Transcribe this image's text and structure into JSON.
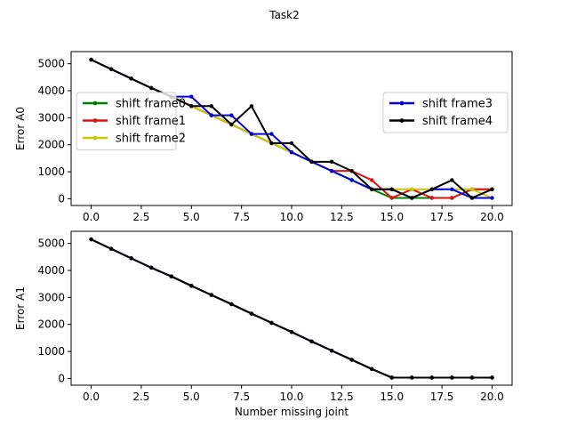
{
  "figure": {
    "suptitle": "Task2"
  },
  "chart_data": [
    {
      "type": "line",
      "title": "",
      "xlabel": "",
      "ylabel": "Error A0",
      "xlim": [
        -1,
        21
      ],
      "ylim": [
        -250,
        5450
      ],
      "xticks": [
        0,
        2.5,
        5,
        7.5,
        10,
        12.5,
        15,
        17.5,
        20
      ],
      "xtick_labels": [
        "0.0",
        "2.5",
        "5.0",
        "7.5",
        "10.0",
        "12.5",
        "15.0",
        "17.5",
        "20.0"
      ],
      "yticks": [
        0,
        1000,
        2000,
        3000,
        4000,
        5000
      ],
      "ytick_labels": [
        "0",
        "1000",
        "2000",
        "3000",
        "4000",
        "5000"
      ],
      "x": [
        0,
        1,
        2,
        3,
        4,
        5,
        6,
        7,
        8,
        9,
        10,
        11,
        12,
        13,
        14,
        15,
        16,
        17,
        18,
        19,
        20
      ],
      "series": [
        {
          "name": "shift frame0",
          "color": "#008000",
          "values": [
            5150,
            4800,
            4450,
            4100,
            3780,
            3430,
            3090,
            2750,
            2400,
            2060,
            1720,
            1370,
            1030,
            690,
            350,
            30,
            30,
            30,
            30,
            350,
            350
          ]
        },
        {
          "name": "shift frame1",
          "color": "#e01010",
          "values": [
            5150,
            4800,
            4450,
            4100,
            3780,
            3430,
            3090,
            2750,
            2400,
            2060,
            1720,
            1370,
            1030,
            1030,
            690,
            30,
            350,
            30,
            30,
            350,
            350
          ]
        },
        {
          "name": "shift frame2",
          "color": "#c8c800",
          "values": [
            5150,
            4800,
            4450,
            4100,
            3780,
            3430,
            3090,
            2750,
            2400,
            2060,
            1720,
            1370,
            1030,
            690,
            350,
            350,
            350,
            350,
            350,
            350,
            30
          ]
        },
        {
          "name": "shift frame3",
          "color": "#0000e0",
          "values": [
            5150,
            4800,
            4450,
            4100,
            3780,
            3780,
            3090,
            3090,
            2400,
            2400,
            1720,
            1370,
            1030,
            690,
            350,
            350,
            30,
            350,
            350,
            30,
            30
          ]
        },
        {
          "name": "shift frame4",
          "color": "#000000",
          "values": [
            5150,
            4800,
            4450,
            4100,
            3780,
            3430,
            3430,
            2750,
            3430,
            2060,
            2060,
            1370,
            1370,
            1030,
            350,
            350,
            30,
            350,
            690,
            30,
            350
          ]
        }
      ],
      "legend": {
        "left_column": [
          "shift frame0",
          "shift frame1",
          "shift frame2"
        ],
        "right_column": [
          "shift frame3",
          "shift frame4"
        ],
        "placement": "upper band, two columns"
      }
    },
    {
      "type": "line",
      "title": "",
      "xlabel": "Number missing joint",
      "ylabel": "Error A1",
      "xlim": [
        -1,
        21
      ],
      "ylim": [
        -250,
        5450
      ],
      "xticks": [
        0,
        2.5,
        5,
        7.5,
        10,
        12.5,
        15,
        17.5,
        20
      ],
      "xtick_labels": [
        "0.0",
        "2.5",
        "5.0",
        "7.5",
        "10.0",
        "12.5",
        "15.0",
        "17.5",
        "20.0"
      ],
      "yticks": [
        0,
        1000,
        2000,
        3000,
        4000,
        5000
      ],
      "ytick_labels": [
        "0",
        "1000",
        "2000",
        "3000",
        "4000",
        "5000"
      ],
      "x": [
        0,
        1,
        2,
        3,
        4,
        5,
        6,
        7,
        8,
        9,
        10,
        11,
        12,
        13,
        14,
        15,
        16,
        17,
        18,
        19,
        20
      ],
      "series": [
        {
          "name": "shift frame0",
          "color": "#008000",
          "values": [
            5150,
            4800,
            4450,
            4100,
            3780,
            3430,
            3090,
            2750,
            2400,
            2060,
            1720,
            1370,
            1030,
            690,
            350,
            30,
            30,
            30,
            30,
            30,
            30
          ]
        },
        {
          "name": "shift frame1",
          "color": "#e01010",
          "values": [
            5150,
            4800,
            4450,
            4100,
            3780,
            3430,
            3090,
            2750,
            2400,
            2060,
            1720,
            1370,
            1030,
            690,
            350,
            30,
            30,
            30,
            30,
            30,
            30
          ]
        },
        {
          "name": "shift frame2",
          "color": "#c8c800",
          "values": [
            5150,
            4800,
            4450,
            4100,
            3780,
            3430,
            3090,
            2750,
            2400,
            2060,
            1720,
            1370,
            1030,
            690,
            350,
            30,
            30,
            30,
            30,
            30,
            30
          ]
        },
        {
          "name": "shift frame3",
          "color": "#0000e0",
          "values": [
            5150,
            4800,
            4450,
            4100,
            3780,
            3430,
            3090,
            2750,
            2400,
            2060,
            1720,
            1370,
            1030,
            690,
            350,
            30,
            30,
            30,
            30,
            30,
            30
          ]
        },
        {
          "name": "shift frame4",
          "color": "#000000",
          "values": [
            5150,
            4800,
            4450,
            4100,
            3780,
            3430,
            3090,
            2750,
            2400,
            2060,
            1720,
            1370,
            1030,
            690,
            350,
            30,
            30,
            30,
            30,
            30,
            30
          ]
        }
      ]
    }
  ]
}
